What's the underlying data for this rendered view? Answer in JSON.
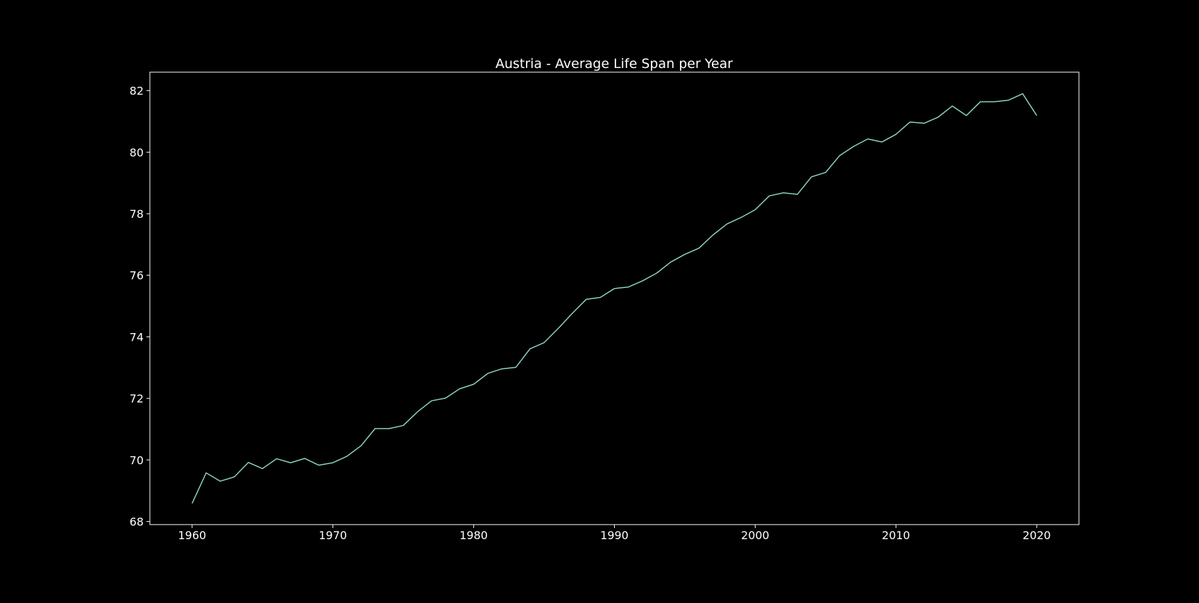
{
  "colors": {
    "background": "#000000",
    "foreground": "#ffffff",
    "series_line": "#8dd3c7"
  },
  "chart_data": {
    "type": "line",
    "title": "Austria - Average Life Span per Year",
    "xlabel": "",
    "ylabel": "",
    "xlim": [
      1957,
      2023
    ],
    "ylim": [
      67.9,
      82.6
    ],
    "grid": false,
    "x_ticks": [
      1960,
      1970,
      1980,
      1990,
      2000,
      2010,
      2020
    ],
    "y_ticks": [
      68,
      70,
      72,
      74,
      76,
      78,
      80,
      82
    ],
    "x": [
      1960,
      1961,
      1962,
      1963,
      1964,
      1965,
      1966,
      1967,
      1968,
      1969,
      1970,
      1971,
      1972,
      1973,
      1974,
      1975,
      1976,
      1977,
      1978,
      1979,
      1980,
      1981,
      1982,
      1983,
      1984,
      1985,
      1986,
      1987,
      1988,
      1989,
      1990,
      1991,
      1992,
      1993,
      1994,
      1995,
      1996,
      1997,
      1998,
      1999,
      2000,
      2001,
      2002,
      2003,
      2004,
      2005,
      2006,
      2007,
      2008,
      2009,
      2010,
      2011,
      2012,
      2013,
      2014,
      2015,
      2016,
      2017,
      2018,
      2019,
      2020
    ],
    "series": [
      {
        "values": [
          68.59,
          69.58,
          69.31,
          69.45,
          69.92,
          69.72,
          70.04,
          69.91,
          70.05,
          69.83,
          69.91,
          70.12,
          70.46,
          71.02,
          71.02,
          71.12,
          71.56,
          71.92,
          72.01,
          72.31,
          72.46,
          72.81,
          72.96,
          73.01,
          73.61,
          73.81,
          74.27,
          74.76,
          75.22,
          75.28,
          75.57,
          75.62,
          75.82,
          76.07,
          76.43,
          76.68,
          76.88,
          77.31,
          77.67,
          77.88,
          78.13,
          78.58,
          78.68,
          78.63,
          79.2,
          79.34,
          79.89,
          80.19,
          80.43,
          80.33,
          80.58,
          80.98,
          80.94,
          81.14,
          81.5,
          81.19,
          81.64,
          81.64,
          81.69,
          81.9,
          81.19
        ]
      }
    ]
  }
}
